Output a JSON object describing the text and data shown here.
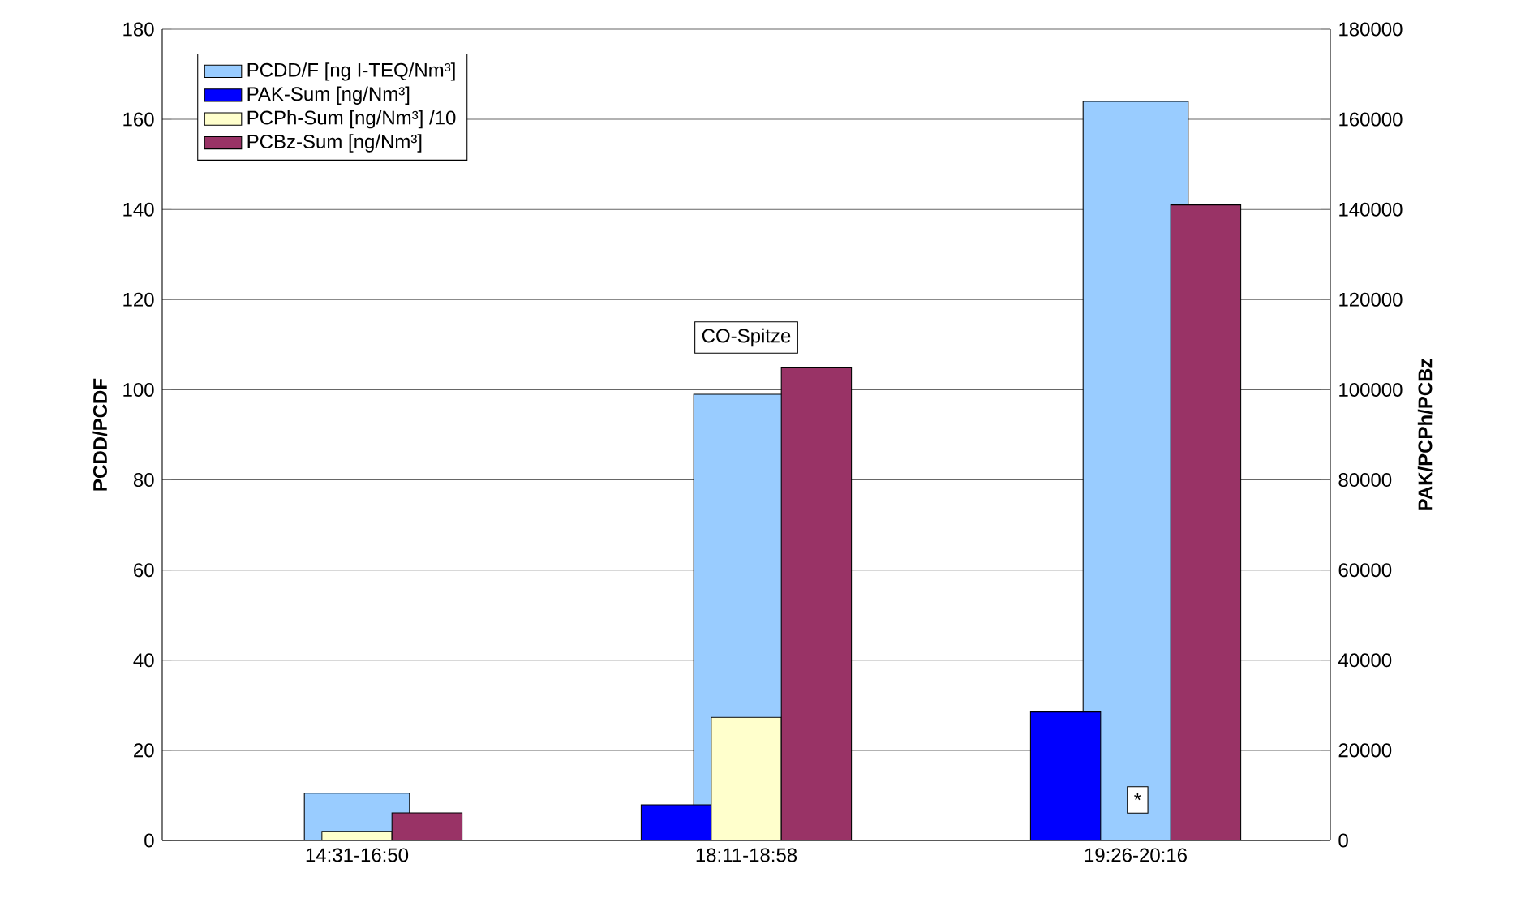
{
  "chart_data": {
    "type": "bar",
    "categories": [
      "14:31-16:50",
      "18:11-18:58",
      "19:26-20:16"
    ],
    "series": [
      {
        "name": "PCDD/F [ng I-TEQ/Nm³]",
        "color": "#99ccff",
        "values": [
          10.5,
          99,
          164
        ]
      },
      {
        "name": "PAK-Sum [ng/Nm³]",
        "color": "#0000ff",
        "values": [
          0,
          7900,
          28500
        ],
        "axis": "y2"
      },
      {
        "name": "PCPh-Sum [ng/Nm³] /10",
        "color": "#ffffcc",
        "values": [
          2000,
          27300,
          null
        ],
        "axis": "y2"
      },
      {
        "name": "PCBz-Sum [ng/Nm³]",
        "color": "#993366",
        "values": [
          6100,
          105000,
          141000
        ],
        "axis": "y2"
      }
    ],
    "ylabel": "PCDD/PCDF",
    "y2label": "PAK/PCPh/PCBz",
    "ylim": [
      0,
      180
    ],
    "yticks": [
      0,
      20,
      40,
      60,
      80,
      100,
      120,
      140,
      160,
      180
    ],
    "y2lim": [
      0,
      180000
    ],
    "y2ticks": [
      0,
      20000,
      40000,
      60000,
      80000,
      100000,
      120000,
      140000,
      160000,
      180000
    ],
    "annotations": [
      "CO-Spitze",
      "*"
    ],
    "grid": "y",
    "legend": "top left"
  }
}
